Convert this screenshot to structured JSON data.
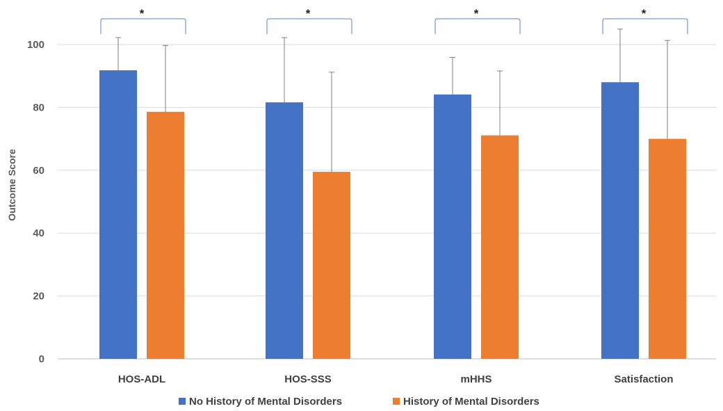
{
  "chart_data": {
    "type": "bar",
    "title": "",
    "xlabel": "",
    "ylabel": "Outcome Score",
    "ylim": [
      0,
      100
    ],
    "yticks": [
      0,
      20,
      40,
      60,
      80,
      100
    ],
    "grid": true,
    "legend_position": "bottom",
    "categories": [
      "HOS-ADL",
      "HOS-SSS",
      "mHHS",
      "Satisfaction"
    ],
    "series": [
      {
        "name": "No History of Mental Disorders",
        "color": "#4472C4",
        "values": [
          91.8,
          81.6,
          84.1,
          88.0
        ],
        "error_upper": [
          102.2,
          102.2,
          95.9,
          104.9
        ]
      },
      {
        "name": "History of Mental Disorders",
        "color": "#ED7D31",
        "values": [
          78.6,
          59.5,
          71.1,
          70.0
        ],
        "error_upper": [
          99.7,
          91.2,
          91.6,
          101.3
        ]
      }
    ],
    "significance": [
      "*",
      "*",
      "*",
      "*"
    ]
  }
}
